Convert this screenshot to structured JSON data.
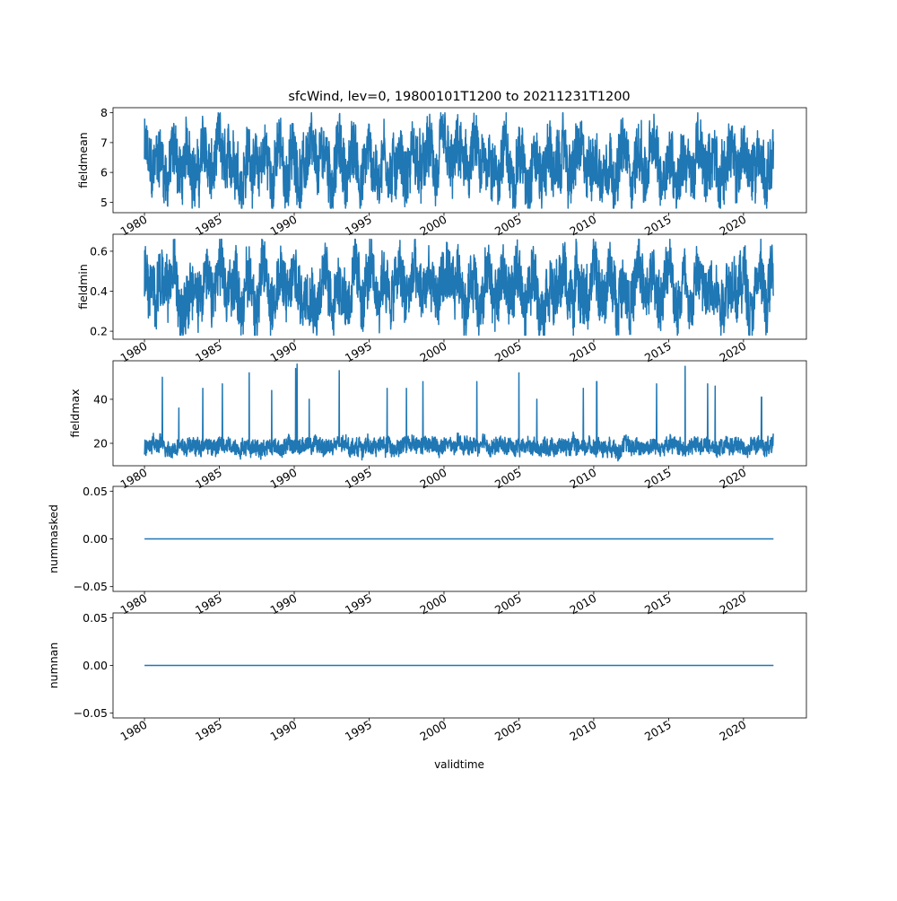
{
  "chart_data": {
    "type": "line",
    "title": "sfcWind, lev=0, 19800101T1200 to 20211231T1200",
    "xlabel": "validtime",
    "x_range": [
      1980.0,
      2022.0
    ],
    "xlim": [
      1977.9,
      2024.2
    ],
    "xticks": [
      "1980",
      "1985",
      "1990",
      "1995",
      "2000",
      "2005",
      "2010",
      "2015",
      "2020"
    ],
    "line_color": "#1f77b4",
    "panels": [
      {
        "ylabel": "fieldmean",
        "ylim": [
          4.65,
          8.17
        ],
        "yticks": [
          "5",
          "6",
          "7",
          "8"
        ],
        "ytick_values": [
          5,
          6,
          7,
          8
        ],
        "series_summary": {
          "mean": 6.3,
          "typical_low": 5.5,
          "typical_high": 7.2,
          "min": 4.8,
          "max": 8.0
        }
      },
      {
        "ylabel": "fieldmin",
        "ylim": [
          0.16,
          0.685
        ],
        "yticks": [
          "0.2",
          "0.4",
          "0.6"
        ],
        "ytick_values": [
          0.2,
          0.4,
          0.6
        ],
        "series_summary": {
          "mean": 0.42,
          "typical_low": 0.3,
          "typical_high": 0.55,
          "min": 0.18,
          "max": 0.66
        }
      },
      {
        "ylabel": "fieldmax",
        "ylim": [
          9.8,
          57.5
        ],
        "yticks": [
          "20",
          "40"
        ],
        "ytick_values": [
          20,
          40
        ],
        "series_summary": {
          "mean": 18,
          "typical_low": 14,
          "typical_high": 24,
          "min": 12,
          "max": 56
        },
        "spikes": [
          [
            1981.2,
            50
          ],
          [
            1982.3,
            36
          ],
          [
            1983.9,
            45
          ],
          [
            1985.2,
            47
          ],
          [
            1987.0,
            52
          ],
          [
            1988.5,
            44
          ],
          [
            1990.1,
            54
          ],
          [
            1990.2,
            56
          ],
          [
            1991.0,
            40
          ],
          [
            1993.0,
            53
          ],
          [
            1996.2,
            45
          ],
          [
            1997.5,
            45
          ],
          [
            1998.6,
            48
          ],
          [
            2002.2,
            48
          ],
          [
            2005.0,
            52
          ],
          [
            2006.2,
            40
          ],
          [
            2009.3,
            45
          ],
          [
            2010.2,
            48
          ],
          [
            2014.2,
            47
          ],
          [
            2016.1,
            55
          ],
          [
            2017.6,
            47
          ],
          [
            2018.1,
            46
          ],
          [
            2021.2,
            41
          ]
        ]
      },
      {
        "ylabel": "nummasked",
        "ylim": [
          -0.055,
          0.055
        ],
        "yticks": [
          "−0.05",
          "0.00",
          "0.05"
        ],
        "ytick_values": [
          -0.05,
          0,
          0.05
        ],
        "series_summary": {
          "constant": 0
        }
      },
      {
        "ylabel": "numnan",
        "ylim": [
          -0.055,
          0.055
        ],
        "yticks": [
          "−0.05",
          "0.00",
          "0.05"
        ],
        "ytick_values": [
          -0.05,
          0,
          0.05
        ],
        "series_summary": {
          "constant": 0
        }
      }
    ]
  }
}
